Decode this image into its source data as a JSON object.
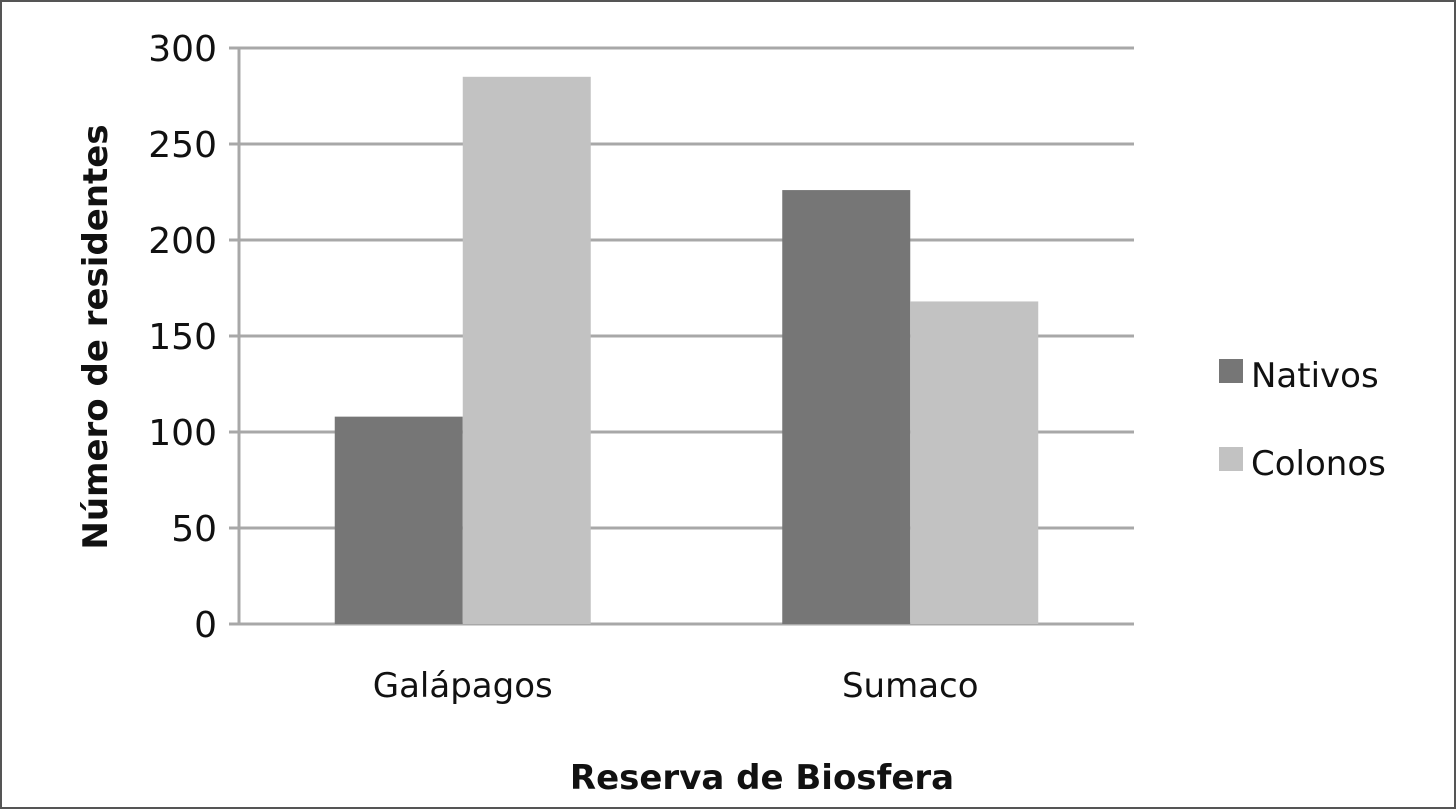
{
  "chart_data": {
    "type": "bar",
    "title": "",
    "xlabel": "Reserva de Biosfera",
    "ylabel": "Número de residentes",
    "categories": [
      "Galápagos",
      "Sumaco"
    ],
    "series": [
      {
        "name": "Nativos",
        "values": [
          108,
          226
        ],
        "color": "#767676"
      },
      {
        "name": "Colonos",
        "values": [
          285,
          168
        ],
        "color": "#c2c2c2"
      }
    ],
    "ylim": [
      0,
      300
    ],
    "yticks": [
      0,
      50,
      100,
      150,
      200,
      250,
      300
    ],
    "grid": true,
    "legend_position": "right"
  }
}
